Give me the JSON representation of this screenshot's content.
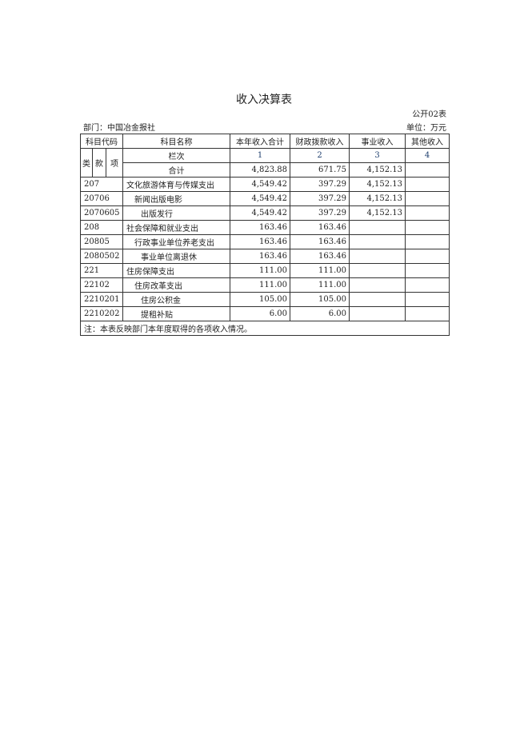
{
  "title": "收入决算表",
  "form_code": "公开02表",
  "department": "部门：中国冶金报社",
  "unit": "单位：万元",
  "headers": {
    "code": "科目代码",
    "name": "科目名称",
    "col1": "本年收入合计",
    "col2": "财政拨款收入",
    "col3": "事业收入",
    "col4": "其他收入",
    "lei": "类",
    "kuan": "款",
    "xiang": "项",
    "lanci": "栏次",
    "n1": "1",
    "n2": "2",
    "n3": "3",
    "n4": "4",
    "total": "合计"
  },
  "totals": {
    "col1": "4,823.88",
    "col2": "671.75",
    "col3": "4,152.13",
    "col4": ""
  },
  "rows": [
    {
      "code": "207",
      "name": "文化旅游体育与传媒支出",
      "level": 1,
      "col1": "4,549.42",
      "col2": "397.29",
      "col3": "4,152.13",
      "col4": ""
    },
    {
      "code": "20706",
      "name": "新闻出版电影",
      "level": 2,
      "col1": "4,549.42",
      "col2": "397.29",
      "col3": "4,152.13",
      "col4": ""
    },
    {
      "code": "2070605",
      "name": "出版发行",
      "level": 3,
      "col1": "4,549.42",
      "col2": "397.29",
      "col3": "4,152.13",
      "col4": ""
    },
    {
      "code": "208",
      "name": "社会保障和就业支出",
      "level": 1,
      "col1": "163.46",
      "col2": "163.46",
      "col3": "",
      "col4": ""
    },
    {
      "code": "20805",
      "name": "行政事业单位养老支出",
      "level": 2,
      "col1": "163.46",
      "col2": "163.46",
      "col3": "",
      "col4": ""
    },
    {
      "code": "2080502",
      "name": "事业单位离退休",
      "level": 3,
      "col1": "163.46",
      "col2": "163.46",
      "col3": "",
      "col4": ""
    },
    {
      "code": "221",
      "name": "住房保障支出",
      "level": 1,
      "col1": "111.00",
      "col2": "111.00",
      "col3": "",
      "col4": ""
    },
    {
      "code": "22102",
      "name": "住房改革支出",
      "level": 2,
      "col1": "111.00",
      "col2": "111.00",
      "col3": "",
      "col4": ""
    },
    {
      "code": "2210201",
      "name": "住房公积金",
      "level": 3,
      "col1": "105.00",
      "col2": "105.00",
      "col3": "",
      "col4": ""
    },
    {
      "code": "2210202",
      "name": "提租补贴",
      "level": 3,
      "col1": "6.00",
      "col2": "6.00",
      "col3": "",
      "col4": ""
    }
  ],
  "note": "注：本表反映部门本年度取得的各项收入情况。",
  "colors": {
    "number_color": "#1f3f6e"
  }
}
